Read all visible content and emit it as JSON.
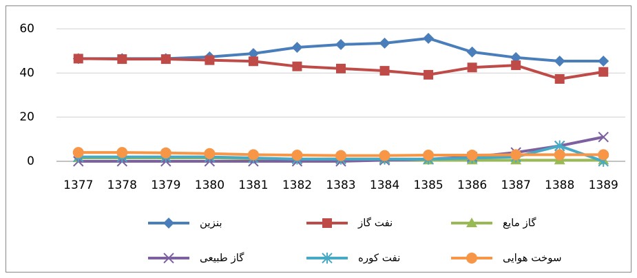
{
  "chart_data": {
    "type": "line",
    "categories": [
      "1377",
      "1378",
      "1379",
      "1380",
      "1381",
      "1382",
      "1383",
      "1384",
      "1385",
      "1386",
      "1387",
      "1388",
      "1389"
    ],
    "series": [
      {
        "name": "بنزین",
        "color": "#4a7ebb",
        "marker": "diamond",
        "values": [
          46.5,
          46.5,
          46.5,
          47.3,
          48.8,
          51.6,
          52.9,
          53.5,
          55.7,
          49.5,
          47,
          45.4,
          45.4
        ]
      },
      {
        "name": "نفت گاز",
        "color": "#be4b48",
        "marker": "square",
        "values": [
          46.5,
          46.3,
          46.3,
          45.8,
          45.3,
          43,
          42,
          41,
          39.2,
          42.5,
          43.5,
          37.3,
          40.5
        ]
      },
      {
        "name": "گاز مایع",
        "color": "#98b954",
        "marker": "triangle",
        "values": [
          1.5,
          1.5,
          1.5,
          1.5,
          1.2,
          1,
          1,
          1,
          0.5,
          0.5,
          0.5,
          0.5,
          0.5
        ]
      },
      {
        "name": "گاز طبیعی",
        "color": "#7d60a0",
        "marker": "x",
        "values": [
          0,
          0,
          0,
          0,
          0,
          0,
          0,
          0.5,
          1,
          2,
          4,
          7,
          11
        ]
      },
      {
        "name": "نفت کوره",
        "color": "#46aac5",
        "marker": "star",
        "values": [
          2,
          2,
          2,
          2,
          1.5,
          1,
          1,
          1,
          1,
          1.5,
          2,
          7,
          0
        ]
      },
      {
        "name": "سوخت هوایی",
        "color": "#f79646",
        "marker": "circle",
        "values": [
          4,
          4,
          3.8,
          3.5,
          3,
          2.8,
          2.6,
          2.6,
          2.8,
          2.8,
          3,
          3,
          3
        ]
      }
    ],
    "ylim": [
      0,
      60
    ],
    "yticks": [
      0,
      20,
      40,
      60
    ],
    "grid": true
  }
}
